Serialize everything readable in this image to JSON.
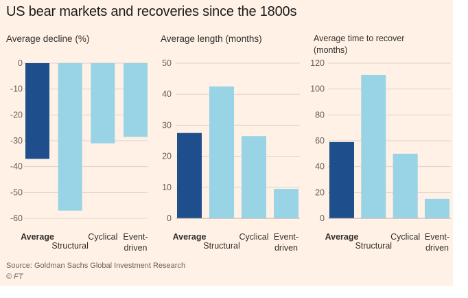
{
  "title": "US bear markets and recoveries since the 1800s",
  "source": "Source: Goldman Sachs Global Investment Research",
  "copyright": "© FT",
  "colors": {
    "background": "#fff1e5",
    "highlight": "#1e4e8c",
    "bars": "#98d3e6",
    "grid": "#ddd3ca",
    "tick_text": "#66605c"
  },
  "chart_data": [
    {
      "type": "bar",
      "title": "Average decline (%)",
      "title_lines": [
        "Average decline (%)"
      ],
      "categories": [
        "Average",
        "Structural",
        "Cyclical",
        "Event-driven"
      ],
      "category_lines": [
        [
          "Average"
        ],
        [
          "Structural"
        ],
        [
          "Cyclical"
        ],
        [
          "Event-",
          "driven"
        ]
      ],
      "values": [
        -37,
        -57,
        -31,
        -28.5
      ],
      "ylim": [
        -60,
        0
      ],
      "yticks": [
        0,
        -10,
        -20,
        -30,
        -40,
        -50,
        -60
      ],
      "grid": true,
      "highlight_index": 0
    },
    {
      "type": "bar",
      "title": "Average length (months)",
      "title_lines": [
        "Average length (months)"
      ],
      "categories": [
        "Average",
        "Structural",
        "Cyclical",
        "Event-driven"
      ],
      "category_lines": [
        [
          "Average"
        ],
        [
          "Structural"
        ],
        [
          "Cyclical"
        ],
        [
          "Event-",
          "driven"
        ]
      ],
      "values": [
        27.5,
        42.5,
        26.5,
        9.5
      ],
      "ylim": [
        0,
        50
      ],
      "yticks": [
        0,
        10,
        20,
        30,
        40,
        50
      ],
      "grid": true,
      "highlight_index": 0
    },
    {
      "type": "bar",
      "title": "Average time to recover (months)",
      "title_lines": [
        "Average time to recover",
        "(months)"
      ],
      "categories": [
        "Average",
        "Structural",
        "Cyclical",
        "Event-driven"
      ],
      "category_lines": [
        [
          "Average"
        ],
        [
          "Structural"
        ],
        [
          "Cyclical"
        ],
        [
          "Event-",
          "driven"
        ]
      ],
      "values": [
        59,
        111,
        50,
        15
      ],
      "ylim": [
        0,
        120
      ],
      "yticks": [
        0,
        20,
        40,
        60,
        80,
        100,
        120
      ],
      "grid": true,
      "highlight_index": 0
    }
  ]
}
